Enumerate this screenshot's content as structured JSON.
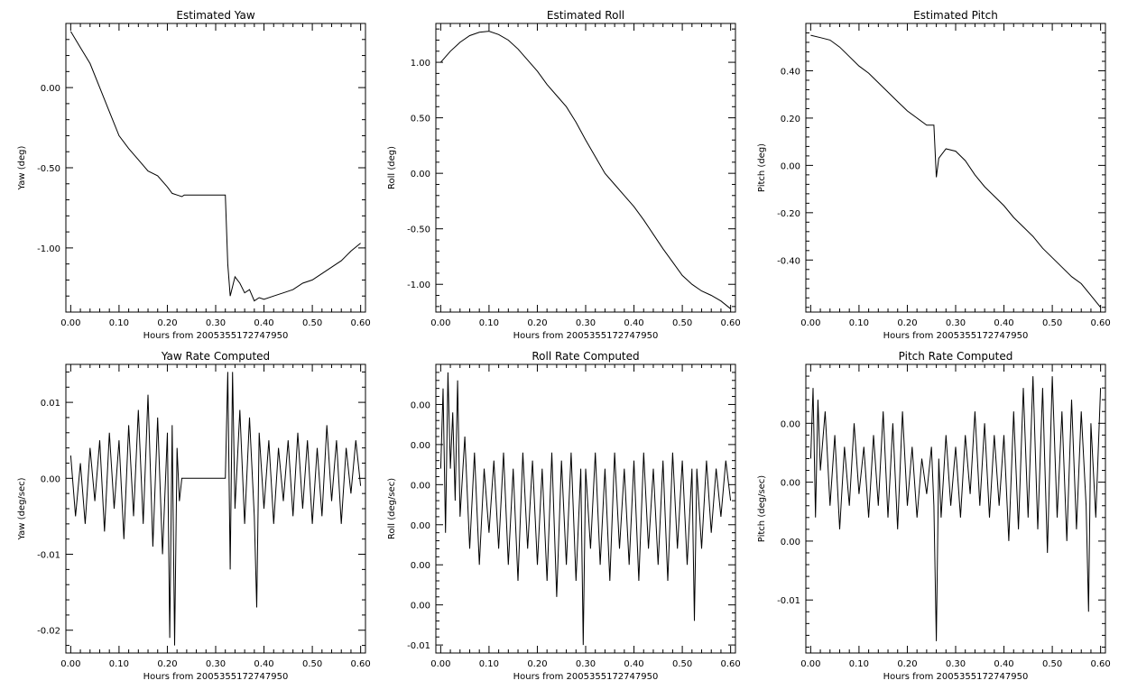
{
  "chart_data": [
    {
      "type": "line",
      "title": "Estimated Yaw",
      "xlabel": "Hours from 2005355172747950",
      "ylabel": "Yaw (deg)",
      "xlim": [
        -0.01,
        0.61
      ],
      "ylim": [
        -1.4,
        0.4
      ],
      "xticks": [
        0.0,
        0.1,
        0.2,
        0.3,
        0.4,
        0.5,
        0.6
      ],
      "xtick_labels": [
        "0.00",
        "0.10",
        "0.20",
        "0.30",
        "0.40",
        "0.50",
        "0.60"
      ],
      "yticks": [
        0.0,
        -0.5,
        -1.0
      ],
      "ytick_labels": [
        "0.00",
        "-0.50",
        "-1.00"
      ],
      "grid": false,
      "series": [
        {
          "x": [
            0.0,
            0.02,
            0.04,
            0.06,
            0.08,
            0.1,
            0.12,
            0.14,
            0.16,
            0.18,
            0.2,
            0.21,
            0.22,
            0.23,
            0.235,
            0.32,
            0.325,
            0.33,
            0.34,
            0.35,
            0.36,
            0.37,
            0.38,
            0.39,
            0.4,
            0.42,
            0.44,
            0.46,
            0.48,
            0.5,
            0.52,
            0.54,
            0.56,
            0.58,
            0.6
          ],
          "y": [
            0.35,
            0.25,
            0.15,
            0.0,
            -0.15,
            -0.3,
            -0.38,
            -0.45,
            -0.52,
            -0.55,
            -0.62,
            -0.66,
            -0.67,
            -0.68,
            -0.67,
            -0.67,
            -1.1,
            -1.3,
            -1.18,
            -1.22,
            -1.28,
            -1.26,
            -1.33,
            -1.31,
            -1.32,
            -1.3,
            -1.28,
            -1.26,
            -1.22,
            -1.2,
            -1.16,
            -1.12,
            -1.08,
            -1.02,
            -0.97
          ]
        }
      ]
    },
    {
      "type": "line",
      "title": "Estimated Roll",
      "xlabel": "Hours from 2005355172747950",
      "ylabel": "Roll (deg)",
      "xlim": [
        -0.01,
        0.61
      ],
      "ylim": [
        -1.25,
        1.35
      ],
      "xticks": [
        0.0,
        0.1,
        0.2,
        0.3,
        0.4,
        0.5,
        0.6
      ],
      "xtick_labels": [
        "0.00",
        "0.10",
        "0.20",
        "0.30",
        "0.40",
        "0.50",
        "0.60"
      ],
      "yticks": [
        1.0,
        0.5,
        0.0,
        -0.5,
        -1.0
      ],
      "ytick_labels": [
        "1.00",
        "0.50",
        "0.00",
        "-0.50",
        "-1.00"
      ],
      "grid": false,
      "series": [
        {
          "x": [
            0.0,
            0.02,
            0.04,
            0.06,
            0.08,
            0.1,
            0.12,
            0.14,
            0.16,
            0.18,
            0.2,
            0.22,
            0.24,
            0.26,
            0.28,
            0.3,
            0.32,
            0.34,
            0.36,
            0.38,
            0.4,
            0.42,
            0.44,
            0.46,
            0.48,
            0.5,
            0.52,
            0.54,
            0.56,
            0.58,
            0.6
          ],
          "y": [
            1.0,
            1.1,
            1.18,
            1.24,
            1.27,
            1.28,
            1.25,
            1.2,
            1.12,
            1.02,
            0.92,
            0.8,
            0.7,
            0.6,
            0.46,
            0.3,
            0.15,
            0.0,
            -0.1,
            -0.2,
            -0.3,
            -0.42,
            -0.55,
            -0.68,
            -0.8,
            -0.92,
            -1.0,
            -1.06,
            -1.1,
            -1.15,
            -1.22
          ]
        }
      ]
    },
    {
      "type": "line",
      "title": "Estimated Pitch",
      "xlabel": "Hours from 2005355172747950",
      "ylabel": "Pitch (deg)",
      "xlim": [
        -0.01,
        0.61
      ],
      "ylim": [
        -0.62,
        0.6
      ],
      "xticks": [
        0.0,
        0.1,
        0.2,
        0.3,
        0.4,
        0.5,
        0.6
      ],
      "xtick_labels": [
        "0.00",
        "0.10",
        "0.20",
        "0.30",
        "0.40",
        "0.50",
        "0.60"
      ],
      "yticks": [
        0.4,
        0.2,
        0.0,
        -0.2,
        -0.4
      ],
      "ytick_labels": [
        "0.40",
        "0.20",
        "0.00",
        "-0.20",
        "-0.40"
      ],
      "grid": false,
      "series": [
        {
          "x": [
            0.0,
            0.02,
            0.04,
            0.06,
            0.08,
            0.1,
            0.12,
            0.14,
            0.16,
            0.18,
            0.2,
            0.22,
            0.24,
            0.255,
            0.26,
            0.265,
            0.28,
            0.3,
            0.32,
            0.34,
            0.36,
            0.38,
            0.4,
            0.42,
            0.44,
            0.46,
            0.48,
            0.5,
            0.52,
            0.54,
            0.56,
            0.58,
            0.6
          ],
          "y": [
            0.55,
            0.54,
            0.53,
            0.5,
            0.46,
            0.42,
            0.39,
            0.35,
            0.31,
            0.27,
            0.23,
            0.2,
            0.17,
            0.17,
            -0.05,
            0.03,
            0.07,
            0.06,
            0.02,
            -0.04,
            -0.09,
            -0.13,
            -0.17,
            -0.22,
            -0.26,
            -0.3,
            -0.35,
            -0.39,
            -0.43,
            -0.47,
            -0.5,
            -0.55,
            -0.6
          ]
        }
      ]
    },
    {
      "type": "line",
      "title": "Yaw Rate Computed",
      "xlabel": "Hours from 2005355172747950",
      "ylabel": "Yaw (deg/sec)",
      "xlim": [
        -0.01,
        0.61
      ],
      "ylim": [
        -0.023,
        0.015
      ],
      "xticks": [
        0.0,
        0.1,
        0.2,
        0.3,
        0.4,
        0.5,
        0.6
      ],
      "xtick_labels": [
        "0.00",
        "0.10",
        "0.20",
        "0.30",
        "0.40",
        "0.50",
        "0.60"
      ],
      "yticks": [
        0.01,
        0.0,
        -0.01,
        -0.02
      ],
      "ytick_labels": [
        "0.01",
        "0.00",
        "-0.01",
        "-0.02"
      ],
      "grid": false,
      "series": [
        {
          "x": [
            0.0,
            0.01,
            0.02,
            0.03,
            0.04,
            0.05,
            0.06,
            0.07,
            0.08,
            0.09,
            0.1,
            0.11,
            0.12,
            0.13,
            0.14,
            0.15,
            0.16,
            0.17,
            0.18,
            0.19,
            0.2,
            0.205,
            0.21,
            0.215,
            0.22,
            0.225,
            0.23,
            0.24,
            0.32,
            0.325,
            0.33,
            0.335,
            0.34,
            0.35,
            0.36,
            0.37,
            0.38,
            0.385,
            0.39,
            0.4,
            0.41,
            0.42,
            0.43,
            0.44,
            0.45,
            0.46,
            0.47,
            0.48,
            0.49,
            0.5,
            0.51,
            0.52,
            0.53,
            0.54,
            0.55,
            0.56,
            0.57,
            0.58,
            0.59,
            0.6
          ],
          "y": [
            0.003,
            -0.005,
            0.002,
            -0.006,
            0.004,
            -0.003,
            0.005,
            -0.007,
            0.006,
            -0.004,
            0.005,
            -0.008,
            0.007,
            -0.005,
            0.009,
            -0.006,
            0.011,
            -0.009,
            0.008,
            -0.01,
            0.006,
            -0.021,
            0.007,
            -0.022,
            0.004,
            -0.003,
            0.0,
            0.0,
            0.0,
            0.014,
            -0.012,
            0.014,
            -0.004,
            0.009,
            -0.006,
            0.008,
            -0.005,
            -0.017,
            0.006,
            -0.004,
            0.005,
            -0.006,
            0.004,
            -0.003,
            0.005,
            -0.005,
            0.006,
            -0.004,
            0.005,
            -0.006,
            0.004,
            -0.005,
            0.007,
            -0.003,
            0.005,
            -0.006,
            0.004,
            -0.002,
            0.005,
            -0.001
          ]
        }
      ]
    },
    {
      "type": "line",
      "title": "Roll Rate Computed",
      "xlabel": "Hours from 2005355172747950",
      "ylabel": "Roll (deg/sec)",
      "xlim": [
        -0.01,
        0.61
      ],
      "ylim": [
        -0.0105,
        0.0075
      ],
      "xticks": [
        0.0,
        0.1,
        0.2,
        0.3,
        0.4,
        0.5,
        0.6
      ],
      "xtick_labels": [
        "0.00",
        "0.10",
        "0.20",
        "0.30",
        "0.40",
        "0.50",
        "0.60"
      ],
      "yticks": [
        0.005,
        0.0025,
        0.0,
        -0.0025,
        -0.005,
        -0.0075,
        -0.01
      ],
      "ytick_labels": [
        "0.00",
        "0.00",
        "0.00",
        "0.00",
        "0.00",
        "0.00",
        "-0.01"
      ],
      "grid": false,
      "series": [
        {
          "x": [
            0.0,
            0.005,
            0.01,
            0.015,
            0.02,
            0.025,
            0.03,
            0.035,
            0.04,
            0.05,
            0.06,
            0.07,
            0.08,
            0.09,
            0.1,
            0.11,
            0.12,
            0.13,
            0.14,
            0.15,
            0.16,
            0.17,
            0.18,
            0.19,
            0.2,
            0.21,
            0.22,
            0.23,
            0.24,
            0.25,
            0.26,
            0.27,
            0.28,
            0.29,
            0.295,
            0.3,
            0.31,
            0.32,
            0.33,
            0.34,
            0.35,
            0.36,
            0.37,
            0.38,
            0.39,
            0.4,
            0.41,
            0.42,
            0.43,
            0.44,
            0.45,
            0.46,
            0.47,
            0.48,
            0.49,
            0.5,
            0.51,
            0.52,
            0.525,
            0.53,
            0.54,
            0.55,
            0.56,
            0.57,
            0.58,
            0.59,
            0.6
          ],
          "y": [
            0.001,
            0.006,
            -0.003,
            0.007,
            0.001,
            0.0045,
            -0.001,
            0.0065,
            -0.002,
            0.003,
            -0.004,
            0.002,
            -0.005,
            0.001,
            -0.003,
            0.0015,
            -0.004,
            0.002,
            -0.005,
            0.001,
            -0.006,
            0.002,
            -0.004,
            0.0015,
            -0.005,
            0.001,
            -0.006,
            0.002,
            -0.007,
            0.0015,
            -0.005,
            0.002,
            -0.006,
            0.001,
            -0.01,
            0.001,
            -0.004,
            0.002,
            -0.005,
            0.001,
            -0.006,
            0.002,
            -0.004,
            0.001,
            -0.005,
            0.0015,
            -0.006,
            0.002,
            -0.004,
            0.001,
            -0.005,
            0.0015,
            -0.006,
            0.002,
            -0.004,
            0.0015,
            -0.005,
            0.001,
            -0.0085,
            0.001,
            -0.004,
            0.0015,
            -0.003,
            0.001,
            -0.002,
            0.0015,
            -0.001
          ]
        }
      ]
    },
    {
      "type": "line",
      "title": "Pitch Rate Computed",
      "xlabel": "Hours from 2005355172747950",
      "ylabel": "Pitch (deg/sec)",
      "xlim": [
        -0.01,
        0.61
      ],
      "ylim": [
        -0.0145,
        0.01
      ],
      "xticks": [
        0.0,
        0.1,
        0.2,
        0.3,
        0.4,
        0.5,
        0.6
      ],
      "xtick_labels": [
        "0.00",
        "0.10",
        "0.20",
        "0.30",
        "0.40",
        "0.50",
        "0.60"
      ],
      "yticks": [
        0.005,
        0.0,
        -0.005,
        -0.01
      ],
      "ytick_labels": [
        "0.00",
        "0.00",
        "0.00",
        "-0.01"
      ],
      "grid": false,
      "series": [
        {
          "x": [
            0.0,
            0.005,
            0.01,
            0.015,
            0.02,
            0.03,
            0.04,
            0.05,
            0.06,
            0.07,
            0.08,
            0.09,
            0.1,
            0.11,
            0.12,
            0.13,
            0.14,
            0.15,
            0.16,
            0.17,
            0.18,
            0.19,
            0.2,
            0.21,
            0.22,
            0.23,
            0.24,
            0.25,
            0.255,
            0.26,
            0.265,
            0.27,
            0.28,
            0.29,
            0.3,
            0.31,
            0.32,
            0.33,
            0.34,
            0.35,
            0.36,
            0.37,
            0.38,
            0.39,
            0.4,
            0.41,
            0.42,
            0.43,
            0.44,
            0.45,
            0.46,
            0.47,
            0.48,
            0.49,
            0.5,
            0.51,
            0.52,
            0.53,
            0.54,
            0.55,
            0.56,
            0.57,
            0.575,
            0.58,
            0.59,
            0.6
          ],
          "y": [
            0.002,
            0.008,
            -0.003,
            0.007,
            0.001,
            0.006,
            -0.002,
            0.004,
            -0.004,
            0.003,
            -0.002,
            0.005,
            -0.001,
            0.003,
            -0.003,
            0.004,
            -0.002,
            0.006,
            -0.003,
            0.005,
            -0.004,
            0.006,
            -0.002,
            0.003,
            -0.003,
            0.002,
            -0.001,
            0.003,
            -0.002,
            -0.0135,
            0.002,
            -0.003,
            0.004,
            -0.002,
            0.003,
            -0.003,
            0.004,
            -0.001,
            0.006,
            -0.002,
            0.005,
            -0.003,
            0.004,
            -0.002,
            0.004,
            -0.005,
            0.006,
            -0.004,
            0.008,
            -0.003,
            0.009,
            -0.004,
            0.008,
            -0.006,
            0.009,
            -0.003,
            0.006,
            -0.005,
            0.007,
            -0.004,
            0.006,
            -0.002,
            -0.011,
            0.005,
            -0.003,
            0.008
          ]
        }
      ]
    }
  ]
}
